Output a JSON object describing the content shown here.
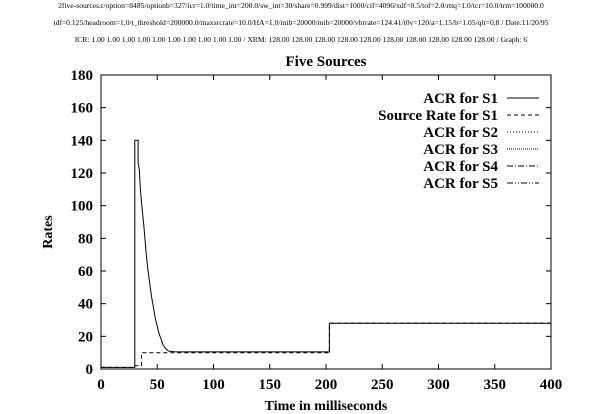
{
  "header": {
    "line1": "2five-sources.r/option=8485/optionb=327/icr=1.0/time_int=200.0/sw_int=30/share=0.999/dist=1000/cif=4096/xdf=0.5/tof=2.0/rttq=1.0/tcr=10.0/trm=100000.0",
    "line2": "tdf=0.125/headroom=1.0/t_threshold=200000.0/maxsrcrate=10.0/HA=1.0/mib=20000/mib=20000/vbrrate=124.41/t0v=120/a=1.15/b=1.05/qlt=0.8 / Date:11/20/95",
    "line3": "ICR: 1.00 1.00 1.00 1.00 1.00 1.00 1.00 1.00 1.00 1.00 / XRM: 128.00 128.00 128.00 128.00 128.00 128.00 128.00 128.00 128.00 128.00 / Graph: 6"
  },
  "chart_data": {
    "type": "line",
    "title": "Five Sources",
    "xlabel": "Time in milliseconds",
    "ylabel": "Rates",
    "xlim": [
      0,
      400
    ],
    "ylim": [
      0,
      180
    ],
    "xticks": [
      "0",
      "50",
      "100",
      "150",
      "200",
      "250",
      "300",
      "350",
      "400"
    ],
    "yticks": [
      "0",
      "20",
      "40",
      "60",
      "80",
      "100",
      "120",
      "140",
      "160",
      "180"
    ],
    "legend_position": "top-right",
    "series": [
      {
        "name": "ACR for S1",
        "style": "solid",
        "points": [
          [
            0,
            1
          ],
          [
            30,
            1
          ],
          [
            30,
            140
          ],
          [
            31,
            140
          ],
          [
            32,
            140
          ],
          [
            33,
            140
          ],
          [
            33,
            126
          ],
          [
            34,
            122
          ],
          [
            35,
            110
          ],
          [
            36,
            102
          ],
          [
            37,
            95
          ],
          [
            38,
            88
          ],
          [
            39,
            80
          ],
          [
            40,
            72
          ],
          [
            41,
            65
          ],
          [
            42,
            59
          ],
          [
            43,
            54
          ],
          [
            44,
            49
          ],
          [
            45,
            44
          ],
          [
            46,
            40
          ],
          [
            47,
            36
          ],
          [
            48,
            32
          ],
          [
            49,
            29
          ],
          [
            50,
            26
          ],
          [
            51,
            23
          ],
          [
            52,
            21
          ],
          [
            53,
            19
          ],
          [
            54,
            17
          ],
          [
            55,
            15
          ],
          [
            56,
            14
          ],
          [
            57,
            13
          ],
          [
            58,
            12
          ],
          [
            59,
            11.5
          ],
          [
            60,
            11
          ],
          [
            62,
            10.8
          ],
          [
            65,
            10.6
          ],
          [
            70,
            10.5
          ],
          [
            100,
            10.5
          ],
          [
            150,
            10.5
          ],
          [
            200,
            10.5
          ],
          [
            203,
            10.5
          ],
          [
            203,
            28
          ],
          [
            250,
            28
          ],
          [
            300,
            28
          ],
          [
            350,
            28
          ],
          [
            400,
            28
          ]
        ]
      },
      {
        "name": "Source Rate for S1",
        "style": "dashed",
        "points": [
          [
            0,
            1
          ],
          [
            30,
            1
          ],
          [
            30,
            2
          ],
          [
            36,
            2
          ],
          [
            36,
            10
          ],
          [
            100,
            10
          ],
          [
            200,
            10
          ],
          [
            203,
            10
          ],
          [
            203,
            28
          ],
          [
            400,
            28
          ]
        ]
      },
      {
        "name": "ACR for S2",
        "style": "dotted"
      },
      {
        "name": "ACR for S3",
        "style": "fine-dotted"
      },
      {
        "name": "ACR for S4",
        "style": "dash-dot"
      },
      {
        "name": "ACR for S5",
        "style": "dash-dot-dot"
      }
    ]
  }
}
